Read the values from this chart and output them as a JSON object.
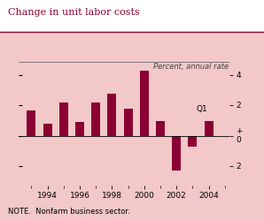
{
  "title": "Change in unit labor costs",
  "subtitle": "Percent, annual rate",
  "note": "NOTE.  Nonfarm business sector.",
  "background_color": "#f2c8c8",
  "bar_color": "#8b0033",
  "title_color": "#8b0033",
  "years": [
    1993,
    1994,
    1995,
    1996,
    1997,
    1998,
    1999,
    2000,
    2001,
    2002,
    2003,
    2004
  ],
  "values": [
    1.7,
    0.8,
    2.2,
    0.9,
    2.2,
    2.8,
    1.8,
    4.3,
    1.0,
    -2.3,
    -0.7,
    1.0
  ],
  "last_label": "Q1",
  "yticks": [
    -2,
    0,
    2,
    4
  ],
  "ylim": [
    -3.3,
    5.4
  ],
  "xlim": [
    1992.2,
    2005.3
  ],
  "bar_width": 0.55,
  "xtick_positions": [
    1994,
    1996,
    1998,
    2000,
    2002,
    2004
  ],
  "top_line_y": 4.9
}
